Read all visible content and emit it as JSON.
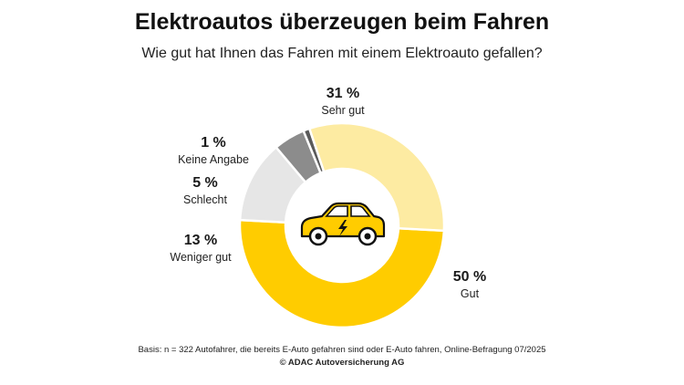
{
  "header": {
    "title": "Elektroautos überzeugen beim Fahren",
    "subtitle": "Wie gut hat Ihnen das Fahren mit einem Elektroauto gefallen?"
  },
  "chart_data": {
    "type": "pie",
    "donut": true,
    "categories": [
      "Gut",
      "Weniger gut",
      "Schlecht",
      "Keine Angabe",
      "Sehr gut"
    ],
    "values": [
      50,
      13,
      5,
      1,
      31
    ],
    "labels": [
      "50 %",
      "13 %",
      "5 %",
      "1 %",
      "31 %"
    ],
    "colors": [
      "#ffcc00",
      "#e6e6e6",
      "#8c8c8c",
      "#5a5a5a",
      "#fdeba2"
    ],
    "center_icon": "electric-car-icon"
  },
  "footer": {
    "basis": "Basis: n = 322 Autofahrer, die bereits E-Auto gefahren sind oder E-Auto fahren, Online-Befragung 07/2025",
    "copyright": "© ADAC Autoversicherung AG"
  }
}
